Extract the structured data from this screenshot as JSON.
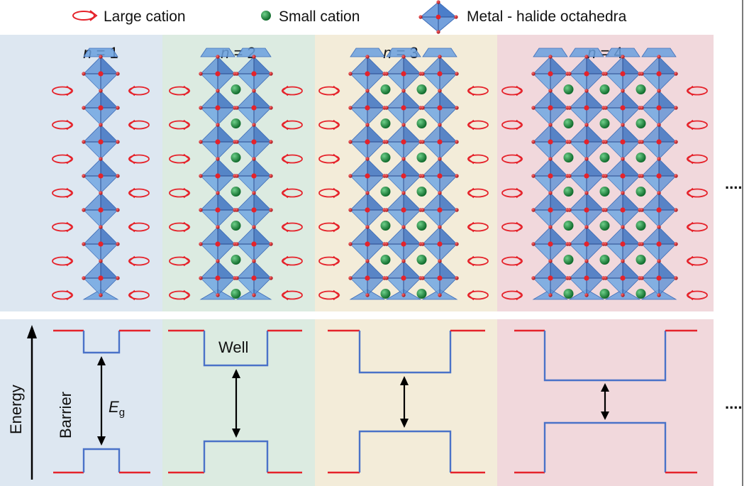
{
  "legend": {
    "large_cation": "Large cation",
    "small_cation": "Small cation",
    "octahedra": "Metal - halide octahedra"
  },
  "panels": [
    {
      "n": 1,
      "label_var": "n",
      "label_rest": " = 1",
      "bg": "#dde7f1",
      "small_cation_columns": 0
    },
    {
      "n": 2,
      "label_var": "n",
      "label_rest": " = 2",
      "bg": "#dcebe1",
      "small_cation_columns": 1
    },
    {
      "n": 3,
      "label_var": "n",
      "label_rest": " = 3",
      "bg": "#f3ecd9",
      "small_cation_columns": 2
    },
    {
      "n": 4,
      "label_var": "n",
      "label_rest": " = 4",
      "bg": "#f1d8dc",
      "small_cation_columns": 3
    }
  ],
  "ellipsis": "....",
  "energy": {
    "axis_label": "Energy",
    "barrier_label": "Barrier",
    "well_label": "Well",
    "gap_label_main": "E",
    "gap_label_sub": "g"
  },
  "colors": {
    "barrier": "#e5232b",
    "well": "#4a72c8",
    "octahedron": "#5a8fd6",
    "octahedron_edge": "#3f6db8",
    "halide": "#d9232b",
    "small_cation": "#1f8a3c",
    "large_cation": "#e5232b"
  }
}
